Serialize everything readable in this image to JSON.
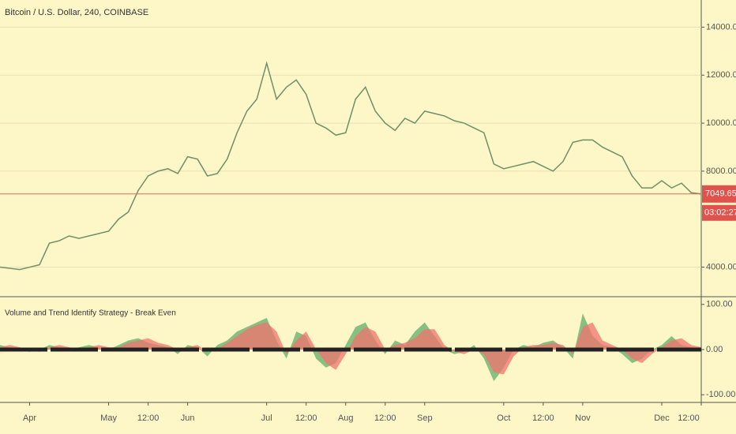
{
  "chart_data": [
    {
      "type": "line",
      "title": "Bitcoin / U.S. Dollar, 240, COINBASE",
      "categories": [
        null,
        null,
        null,
        "Apr",
        null,
        null,
        null,
        null,
        null,
        null,
        null,
        "May",
        null,
        null,
        null,
        "12:00",
        null,
        null,
        null,
        "Jun",
        null,
        null,
        null,
        null,
        null,
        null,
        null,
        "Jul",
        null,
        null,
        null,
        "12:00",
        null,
        null,
        null,
        "Aug",
        null,
        null,
        null,
        "12:00",
        null,
        null,
        null,
        "Sep",
        null,
        null,
        null,
        null,
        null,
        null,
        null,
        "Oct",
        null,
        null,
        null,
        "12:00",
        null,
        null,
        null,
        "Nov",
        null,
        null,
        null,
        null,
        null,
        null,
        null,
        "Dec",
        null,
        null,
        null,
        "12:00"
      ],
      "values": [
        4000,
        3950,
        3900,
        4000,
        4100,
        5000,
        5100,
        5300,
        5200,
        5300,
        5400,
        5500,
        6000,
        6300,
        7200,
        7800,
        8000,
        8100,
        7900,
        8600,
        8500,
        7800,
        7900,
        8500,
        9600,
        10500,
        11000,
        12500,
        11000,
        11500,
        11800,
        11200,
        10000,
        9800,
        9500,
        9600,
        11000,
        11500,
        10500,
        10000,
        9700,
        10200,
        10000,
        10500,
        10400,
        10300,
        10100,
        10000,
        9800,
        9600,
        8300,
        8100,
        8200,
        8300,
        8400,
        8200,
        8000,
        8400,
        9200,
        9300,
        9300,
        9000,
        8800,
        8600,
        7800,
        7300,
        7300,
        7600,
        7300,
        7500,
        7100,
        7050
      ],
      "color": "#6f8f66",
      "ylim": [
        2900,
        15000
      ],
      "yticks": [
        {
          "value": 4000,
          "label": "4000.00"
        },
        {
          "value": 8000,
          "label": "8000.00"
        },
        {
          "value": 10000,
          "label": "10000.00"
        },
        {
          "value": 12000,
          "label": "12000.00"
        },
        {
          "value": 14000,
          "label": "14000.00"
        }
      ],
      "grid": true,
      "last_price": 7049.65,
      "countdown": "03:02:27"
    },
    {
      "type": "area",
      "title": "Volume and Trend Identify Strategy - Break Even",
      "series": [
        {
          "color": "#5fae6a",
          "values": [
            10,
            5,
            0,
            -5,
            0,
            10,
            5,
            0,
            5,
            10,
            5,
            0,
            10,
            20,
            25,
            15,
            10,
            5,
            -10,
            10,
            5,
            -15,
            10,
            20,
            40,
            50,
            60,
            70,
            20,
            -20,
            40,
            30,
            -20,
            -40,
            -30,
            10,
            50,
            60,
            20,
            -10,
            20,
            10,
            40,
            60,
            30,
            0,
            -10,
            -5,
            10,
            -20,
            -70,
            -40,
            0,
            10,
            5,
            15,
            20,
            5,
            -20,
            80,
            30,
            10,
            5,
            -10,
            -30,
            -20,
            0,
            10,
            30,
            10,
            5,
            0
          ]
        },
        {
          "color": "#f0736e",
          "values": [
            5,
            10,
            5,
            0,
            -5,
            5,
            10,
            5,
            0,
            5,
            10,
            5,
            5,
            15,
            20,
            25,
            15,
            10,
            0,
            5,
            10,
            -5,
            0,
            15,
            30,
            45,
            55,
            60,
            40,
            -10,
            20,
            40,
            0,
            -30,
            -45,
            -10,
            30,
            50,
            40,
            0,
            10,
            15,
            25,
            45,
            45,
            10,
            -5,
            -10,
            0,
            -10,
            -50,
            -55,
            -15,
            5,
            10,
            10,
            15,
            10,
            -10,
            50,
            60,
            20,
            10,
            0,
            -20,
            -30,
            -10,
            5,
            20,
            25,
            10,
            5
          ]
        }
      ],
      "ylim": [
        -110,
        110
      ],
      "yticks": [
        {
          "value": -100,
          "label": "-100.00"
        },
        {
          "value": 0,
          "label": "0.00"
        },
        {
          "value": 100,
          "label": "100.00"
        }
      ]
    }
  ]
}
